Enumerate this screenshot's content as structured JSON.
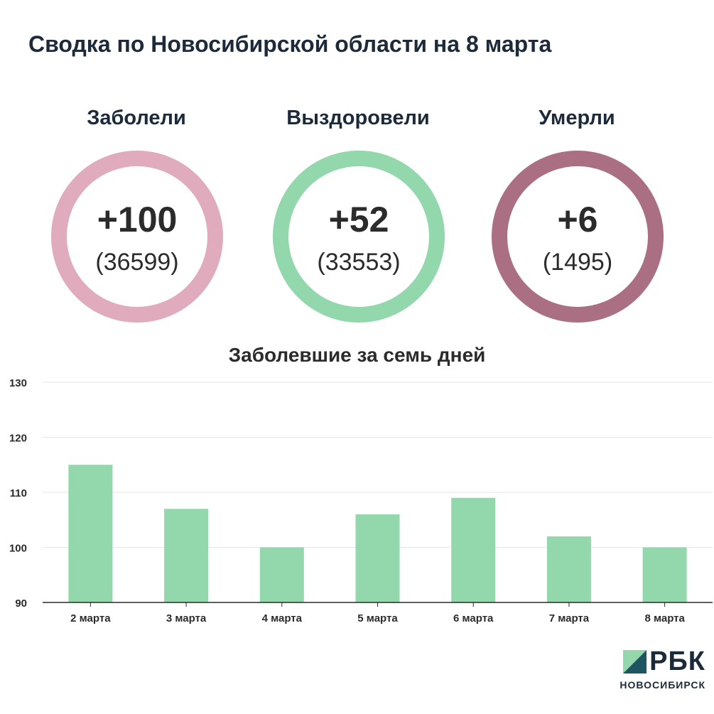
{
  "title": "Сводка по Новосибирской области на 8 марта",
  "stats": [
    {
      "label": "Заболели",
      "delta": "+100",
      "total": "(36599)",
      "color": "#e0acbd"
    },
    {
      "label": "Выздоровели",
      "delta": "+52",
      "total": "(33553)",
      "color": "#93d7ad"
    },
    {
      "label": "Умерли",
      "delta": "+6",
      "total": "(1495)",
      "color": "#ab6f83"
    }
  ],
  "chart_title": "Заболевшие за семь дней",
  "chart_data": {
    "type": "bar",
    "title": "Заболевшие за семь дней",
    "categories": [
      "2 марта",
      "3 марта",
      "4 марта",
      "5 марта",
      "6 марта",
      "7 марта",
      "8 марта"
    ],
    "values": [
      115,
      107,
      100,
      106,
      109,
      102,
      100
    ],
    "ylim": [
      90,
      130
    ],
    "yticks": [
      90,
      100,
      110,
      120,
      130
    ],
    "grid": true,
    "bar_color": "#93d7ad"
  },
  "logo": {
    "name": "РБК",
    "city": "НОВОСИБИРСК"
  }
}
